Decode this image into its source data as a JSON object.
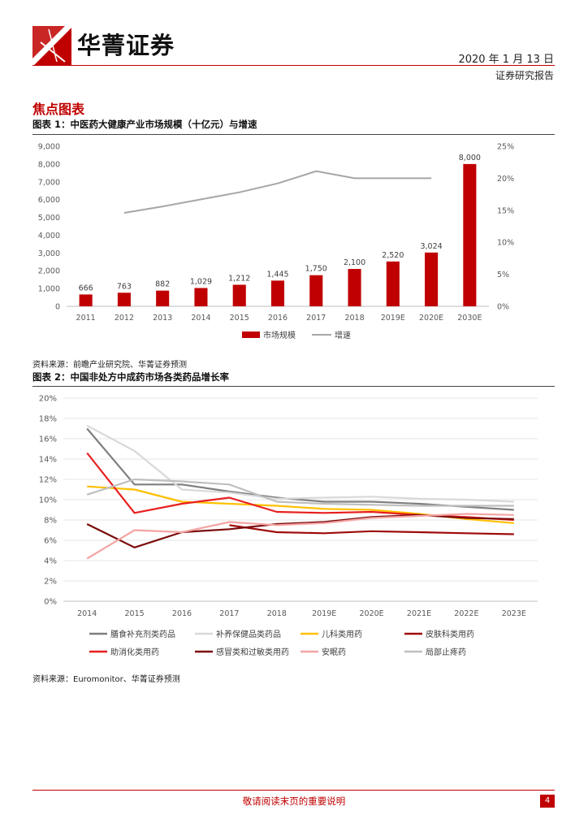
{
  "header": {
    "brand": "华菁证券",
    "date": "2020 年 1 月 13 日",
    "report_type": "证券研究报告",
    "logo_color": "#c00000"
  },
  "section_title": "焦点图表",
  "figure1": {
    "title": "图表 1：中医药大健康产业市场规模（十亿元）与增速",
    "source": "资料来源：前瞻产业研究院、华菁证券预测"
  },
  "figure2": {
    "title": "图表 2：中国非处方中成药市场各类药品增长率",
    "source": "资料来源：Euromonitor、华菁证券预测"
  },
  "footer": {
    "notice": "敬请阅读末页的重要说明",
    "page_number": "4"
  },
  "chart_data": [
    {
      "type": "bar",
      "title": "图表 1：中医药大健康产业市场规模（十亿元）与增速",
      "categories": [
        "2011",
        "2012",
        "2013",
        "2014",
        "2015",
        "2016",
        "2017",
        "2018",
        "2019E",
        "2020E",
        "2030E"
      ],
      "series": [
        {
          "name": "市场规模",
          "type": "bar",
          "axis": "left",
          "color": "#c00000",
          "values": [
            666,
            763,
            882,
            1029,
            1212,
            1445,
            1750,
            2100,
            2520,
            3024,
            8000
          ],
          "labels": [
            "666",
            "763",
            "882",
            "1,029",
            "1,212",
            "1,445",
            "1,750",
            "2,100",
            "2,520",
            "3,024",
            "8,000"
          ]
        },
        {
          "name": "增速",
          "type": "line",
          "axis": "right",
          "color": "#a6a6a6",
          "values": [
            null,
            14.6,
            15.6,
            16.7,
            17.8,
            19.2,
            21.1,
            20.0,
            20.0,
            20.0,
            null
          ]
        }
      ],
      "yleft": {
        "min": 0,
        "max": 9000,
        "ticks": [
          "0",
          "1,000",
          "2,000",
          "3,000",
          "4,000",
          "5,000",
          "6,000",
          "7,000",
          "8,000",
          "9,000"
        ]
      },
      "yright": {
        "min": 0,
        "max": 25,
        "ticks": [
          "0%",
          "5%",
          "10%",
          "15%",
          "20%",
          "25%"
        ]
      },
      "legend": "bottom-center",
      "grid": false
    },
    {
      "type": "line",
      "title": "图表 2：中国非处方中成药市场各类药品增长率",
      "x": [
        "2014",
        "2015",
        "2016",
        "2017",
        "2018",
        "2019E",
        "2020E",
        "2021E",
        "2022E",
        "2023E"
      ],
      "ylim": [
        0,
        20
      ],
      "yticks": [
        "0%",
        "2%",
        "4%",
        "6%",
        "8%",
        "10%",
        "12%",
        "14%",
        "16%",
        "18%",
        "20%"
      ],
      "grid": true,
      "legend": "bottom",
      "series": [
        {
          "name": "膳食补充剂类药品",
          "color": "#7f7f7f",
          "values": [
            17.0,
            11.5,
            11.5,
            10.8,
            10.2,
            9.8,
            9.8,
            9.6,
            9.3,
            9.0
          ]
        },
        {
          "name": "补养保健品类药品",
          "color": "#d9d9d9",
          "values": [
            17.3,
            14.8,
            11.0,
            10.7,
            10.1,
            10.2,
            10.3,
            10.1,
            10.0,
            9.8
          ]
        },
        {
          "name": "儿科类用药",
          "color": "#ffc000",
          "values": [
            11.3,
            11.0,
            9.8,
            9.6,
            9.4,
            9.1,
            9.0,
            8.6,
            8.1,
            7.7
          ]
        },
        {
          "name": "皮肤科类用药",
          "color": "#9e0a0a",
          "values": [
            null,
            null,
            null,
            7.5,
            6.8,
            6.7,
            6.9,
            6.8,
            6.7,
            6.6
          ]
        },
        {
          "name": "助消化类用药",
          "color": "#e81f1f",
          "values": [
            14.6,
            8.7,
            9.6,
            10.2,
            8.8,
            8.7,
            8.8,
            8.5,
            8.3,
            8.0
          ]
        },
        {
          "name": "感冒类和过敏类用药",
          "color": "#7b0b0b",
          "values": [
            7.6,
            5.3,
            6.8,
            7.1,
            7.6,
            7.8,
            8.3,
            8.5,
            8.2,
            8.1
          ]
        },
        {
          "name": "安眠药",
          "color": "#f4a4a4",
          "values": [
            4.2,
            7.0,
            6.8,
            7.8,
            7.5,
            7.7,
            8.2,
            8.4,
            8.6,
            8.5
          ]
        },
        {
          "name": "局部止疼药",
          "color": "#bfbfbf",
          "values": [
            10.5,
            12.0,
            11.8,
            11.5,
            9.8,
            9.6,
            9.5,
            9.4,
            9.4,
            9.4
          ]
        }
      ]
    }
  ]
}
